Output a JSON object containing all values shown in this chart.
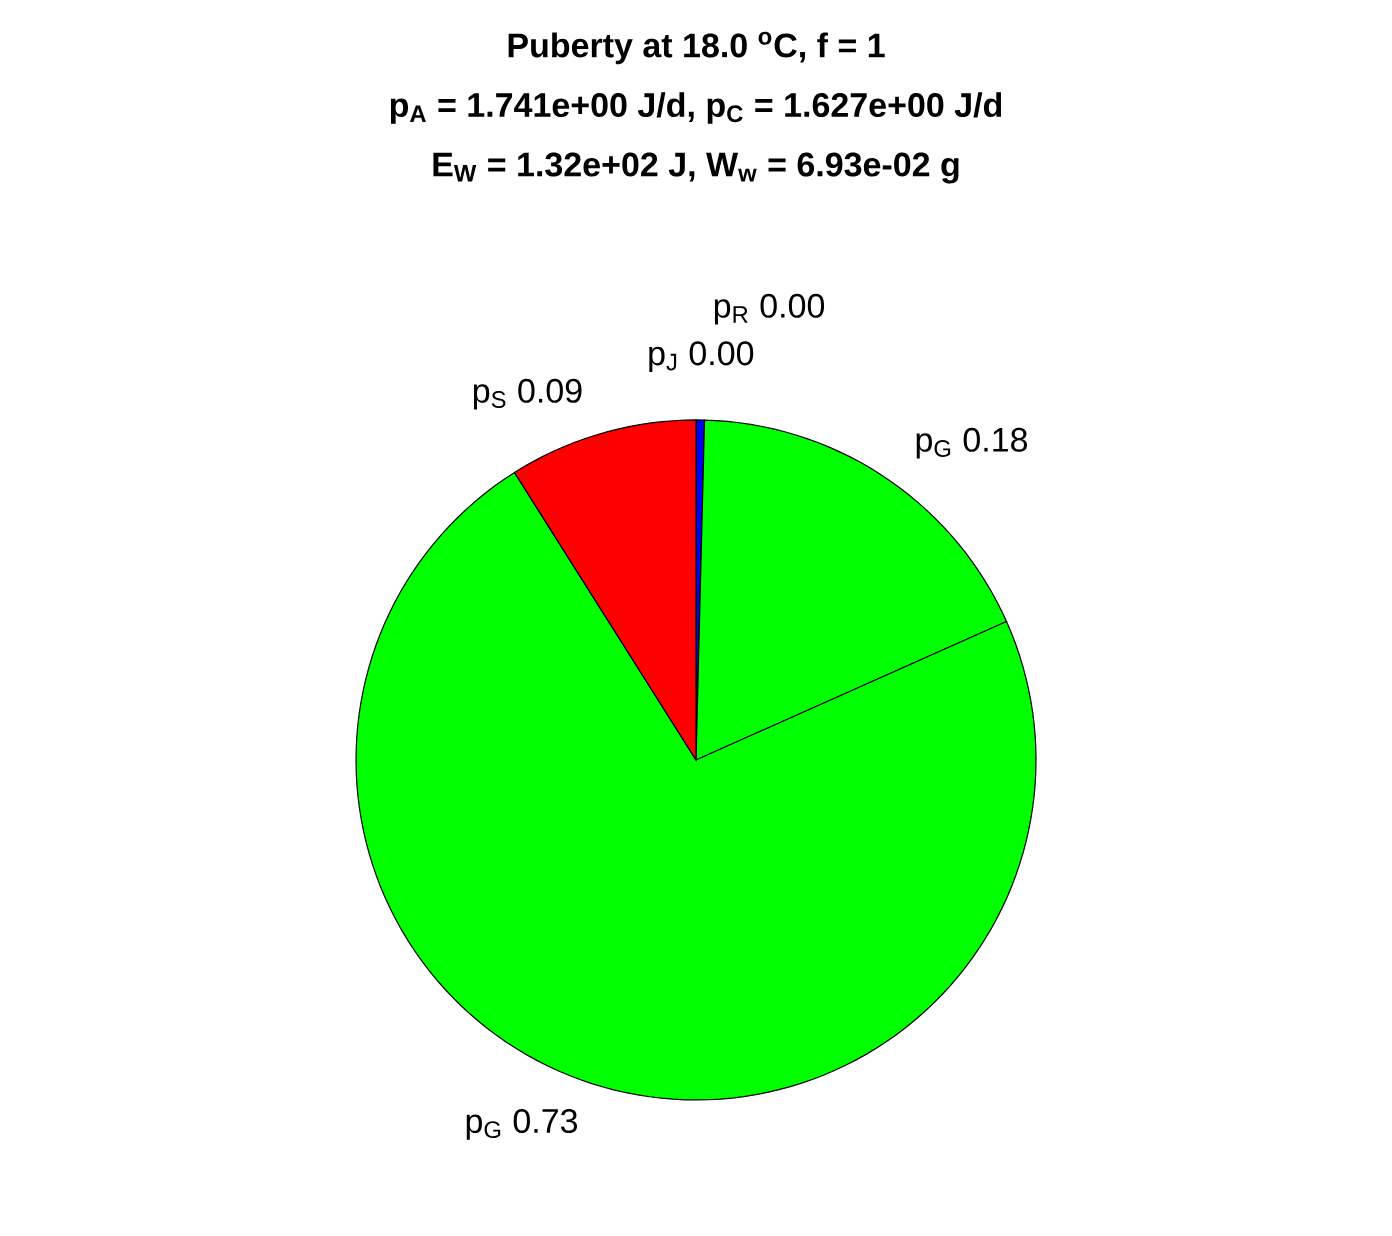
{
  "chart_data": {
    "type": "pie",
    "title": "Puberty at 18.0 $^{o}$C, f = 1",
    "subtitle": "p$_{A}$ = 1.741e+00 J/d,  p$_{C}$ = 1.627e+00 J/d",
    "annotations": [
      "E$_{W}$ = 1.32e+02 J, W$_{w}$ = 6.93e-02 g"
    ],
    "categories": [
      "p$_{J}$",
      "p$_{R}$",
      "p$_{G}$",
      "p$_{G}$",
      "p$_{S}$"
    ],
    "values": [
      0.004,
      0,
      0.18,
      0.73,
      0.09
    ],
    "value_labels": [
      "0.00",
      "0.00",
      "0.18",
      "0.73",
      "0.09"
    ],
    "colors": [
      "#0000ff",
      "#0000ff",
      "#00ff00",
      "#00ff00",
      "#ff0000"
    ]
  }
}
